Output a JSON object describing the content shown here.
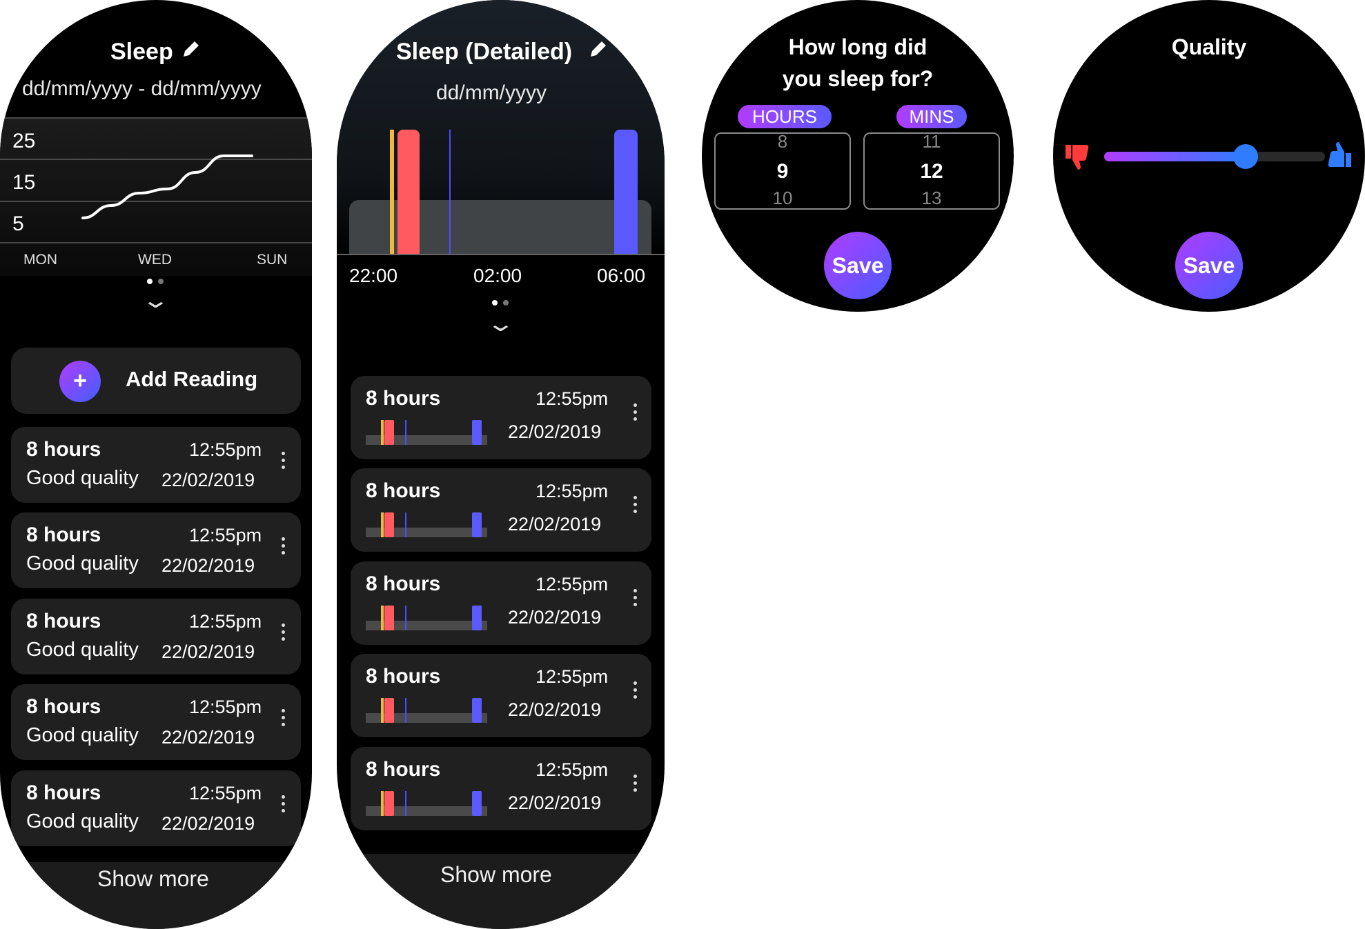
{
  "screen1": {
    "title": "Sleep",
    "date_range": "dd/mm/yyyy - dd/mm/yyyy",
    "chart_data": {
      "type": "line",
      "categories": [
        "MON",
        "",
        "",
        "WED",
        "",
        "",
        "SUN"
      ],
      "y_ticks": [
        "25",
        "15",
        "5"
      ],
      "values": [
        7,
        10,
        13,
        14,
        18,
        22,
        22
      ]
    },
    "add_label": "Add Reading",
    "readings": [
      {
        "hours": "8 hours",
        "quality": "Good quality",
        "time": "12:55pm",
        "date": "22/02/2019"
      },
      {
        "hours": "8 hours",
        "quality": "Good quality",
        "time": "12:55pm",
        "date": "22/02/2019"
      },
      {
        "hours": "8 hours",
        "quality": "Good quality",
        "time": "12:55pm",
        "date": "22/02/2019"
      },
      {
        "hours": "8 hours",
        "quality": "Good quality",
        "time": "12:55pm",
        "date": "22/02/2019"
      },
      {
        "hours": "8 hours",
        "quality": "Good quality",
        "time": "12:55pm",
        "date": "22/02/2019"
      }
    ],
    "show_more": "Show more"
  },
  "screen2": {
    "title": "Sleep (Detailed)",
    "date": "dd/mm/yyyy",
    "x_ticks": [
      "22:00",
      "02:00",
      "06:00"
    ],
    "readings": [
      {
        "hours": "8 hours",
        "time": "12:55pm",
        "date": "22/02/2019"
      },
      {
        "hours": "8 hours",
        "time": "12:55pm",
        "date": "22/02/2019"
      },
      {
        "hours": "8 hours",
        "time": "12:55pm",
        "date": "22/02/2019"
      },
      {
        "hours": "8 hours",
        "time": "12:55pm",
        "date": "22/02/2019"
      },
      {
        "hours": "8 hours",
        "time": "12:55pm",
        "date": "22/02/2019"
      }
    ],
    "show_more": "Show more"
  },
  "screen3": {
    "question_line1": "How long did",
    "question_line2": "you sleep for?",
    "hours_label": "HOURS",
    "mins_label": "MINS",
    "hours_values": [
      "8",
      "9",
      "10"
    ],
    "mins_values": [
      "11",
      "12",
      "13"
    ],
    "save": "Save"
  },
  "screen4": {
    "title": "Quality",
    "slider_value": 0.64,
    "save": "Save"
  },
  "colors": {
    "accent_purple": "#b03cff",
    "accent_blue": "#4a5cff",
    "awake": "#f2b83d",
    "light": "#ff5a5f",
    "deep": "#5a5aff",
    "thumbs_down": "#ff3b3b",
    "thumbs_up": "#2f7cff"
  }
}
